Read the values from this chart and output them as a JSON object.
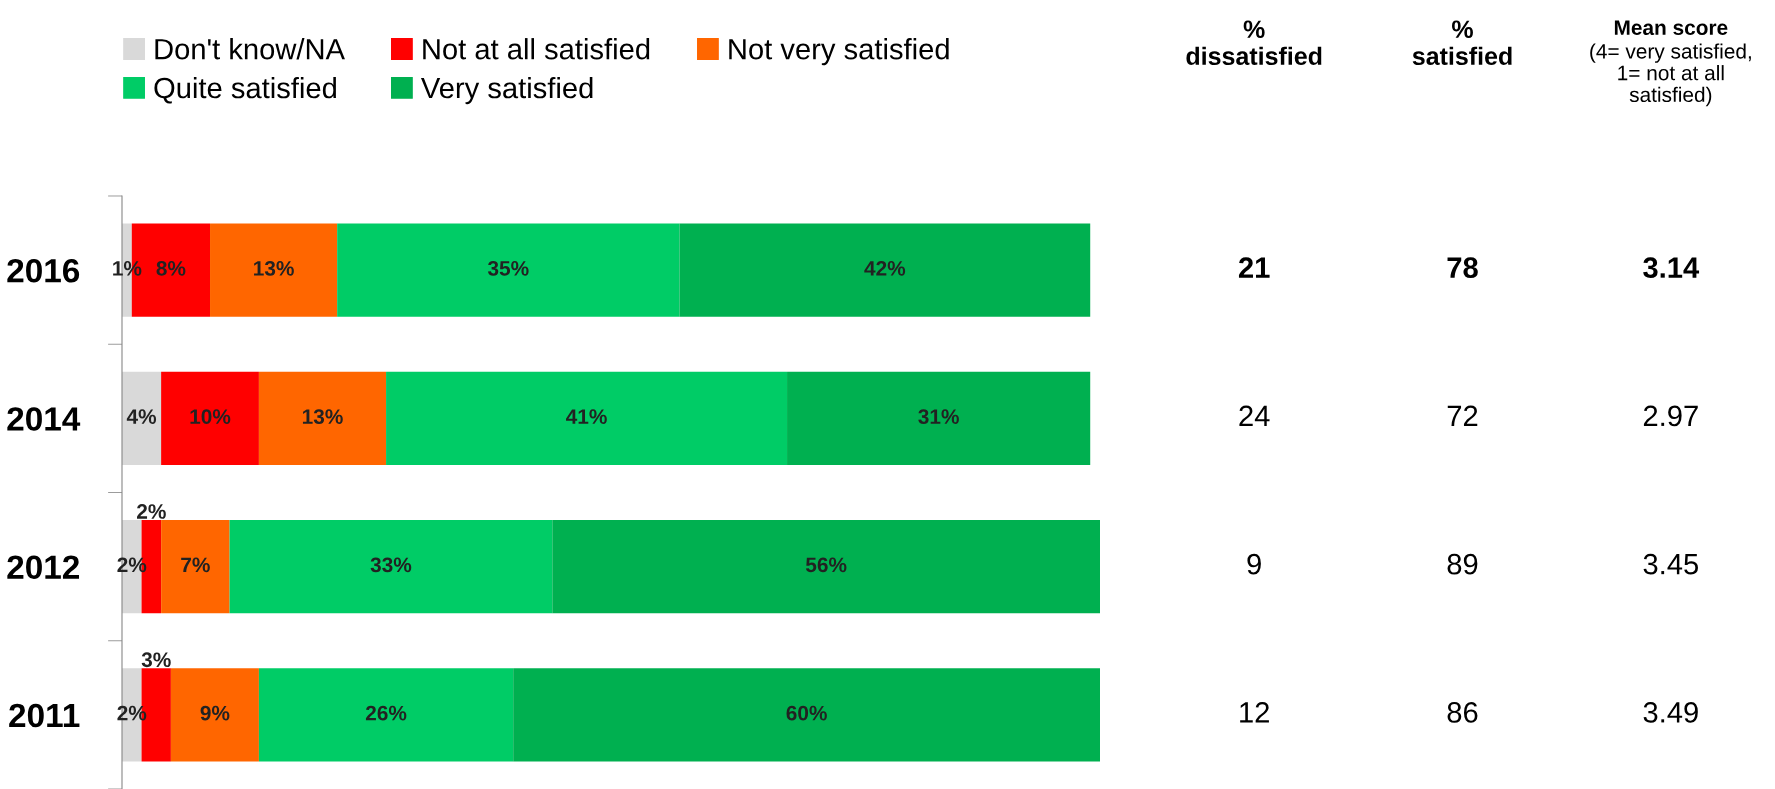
{
  "chart_data": [
    {
      "type": "bar",
      "orientation": "horizontal",
      "stacked": true,
      "categories": [
        "2016",
        "2014",
        "2012",
        "2011"
      ],
      "xlim": [
        0,
        100
      ],
      "tick_labels": "y",
      "legend": "top left",
      "grid": false,
      "series": [
        {
          "name": "Don't know/NA",
          "color": "#d9d9d9",
          "values": [
            1,
            4,
            2,
            2
          ],
          "value_labels": [
            "1%",
            "4%",
            "2%",
            "2%"
          ]
        },
        {
          "name": "Not at all satisfied",
          "color": "#ff0000",
          "values": [
            8,
            10,
            2,
            3
          ],
          "value_labels": [
            "8%",
            "10%",
            "2%",
            "3%"
          ]
        },
        {
          "name": "Not very satisfied",
          "color": "#ff6600",
          "values": [
            13,
            13,
            7,
            9
          ],
          "value_labels": [
            "13%",
            "13%",
            "7%",
            "9%"
          ]
        },
        {
          "name": "Quite satisfied",
          "color": "#00cc66",
          "values": [
            35,
            41,
            33,
            26
          ],
          "value_labels": [
            "35%",
            "41%",
            "33%",
            "26%"
          ]
        },
        {
          "name": "Very satisfied",
          "color": "#00b050",
          "values": [
            42,
            31,
            56,
            60
          ],
          "value_labels": [
            "42%",
            "31%",
            "56%",
            "60%"
          ]
        }
      ]
    },
    {
      "type": "other",
      "categories": [
        "%\ndissatisfied",
        "%\nsatisfied",
        "Mean score\n(4= very satisfied,\n1= not at all\nsatisfied)"
      ],
      "annotations": [
        "21",
        "78",
        "3.14",
        "24",
        "72",
        "2.97",
        "9",
        "89",
        "3.45",
        "12",
        "86",
        "3.49"
      ]
    }
  ]
}
